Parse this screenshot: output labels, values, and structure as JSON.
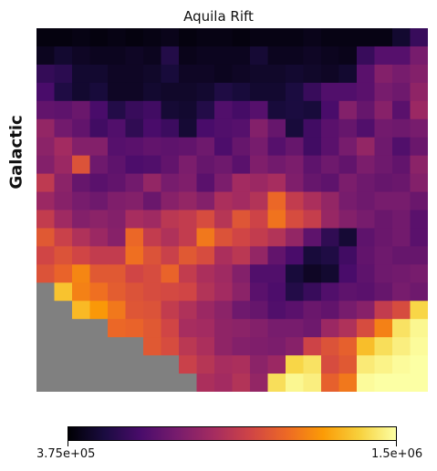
{
  "chart_data": {
    "type": "heatmap",
    "title": "Aquila Rift",
    "ylabel": "Galactic",
    "colormap": "inferno",
    "colorbar": {
      "min": 375000,
      "max": 1500000,
      "min_label": "3.75e+05",
      "max_label": "1.5e+06"
    },
    "masked_color": "#808080",
    "grid_rows": 20,
    "grid_cols": 22,
    "values": [
      [
        0.02,
        0.02,
        0.03,
        0.02,
        0.03,
        0.02,
        0.03,
        0.04,
        0.02,
        0.03,
        0.03,
        0.02,
        0.03,
        0.03,
        0.03,
        0.04,
        0.03,
        0.03,
        0.03,
        0.03,
        0.08,
        0.18
      ],
      [
        0.05,
        0.08,
        0.06,
        0.05,
        0.05,
        0.06,
        0.05,
        0.13,
        0.04,
        0.05,
        0.05,
        0.05,
        0.09,
        0.05,
        0.05,
        0.06,
        0.05,
        0.04,
        0.18,
        0.25,
        0.25,
        0.33
      ],
      [
        0.17,
        0.15,
        0.08,
        0.08,
        0.06,
        0.06,
        0.07,
        0.1,
        0.06,
        0.06,
        0.05,
        0.06,
        0.07,
        0.07,
        0.08,
        0.07,
        0.06,
        0.08,
        0.26,
        0.36,
        0.33,
        0.36
      ],
      [
        0.22,
        0.12,
        0.08,
        0.1,
        0.06,
        0.06,
        0.08,
        0.07,
        0.07,
        0.08,
        0.12,
        0.1,
        0.08,
        0.08,
        0.11,
        0.18,
        0.24,
        0.24,
        0.26,
        0.33,
        0.31,
        0.39
      ],
      [
        0.28,
        0.27,
        0.3,
        0.22,
        0.13,
        0.18,
        0.2,
        0.09,
        0.08,
        0.13,
        0.24,
        0.21,
        0.25,
        0.1,
        0.11,
        0.1,
        0.22,
        0.36,
        0.29,
        0.37,
        0.26,
        0.42
      ],
      [
        0.4,
        0.32,
        0.28,
        0.2,
        0.24,
        0.16,
        0.22,
        0.19,
        0.09,
        0.22,
        0.24,
        0.25,
        0.36,
        0.29,
        0.1,
        0.2,
        0.26,
        0.29,
        0.24,
        0.32,
        0.31,
        0.33
      ],
      [
        0.38,
        0.44,
        0.36,
        0.36,
        0.25,
        0.26,
        0.28,
        0.27,
        0.28,
        0.31,
        0.23,
        0.29,
        0.33,
        0.25,
        0.29,
        0.2,
        0.26,
        0.33,
        0.4,
        0.31,
        0.24,
        0.3
      ],
      [
        0.36,
        0.42,
        0.6,
        0.31,
        0.27,
        0.23,
        0.24,
        0.28,
        0.34,
        0.29,
        0.31,
        0.26,
        0.35,
        0.32,
        0.34,
        0.27,
        0.31,
        0.28,
        0.34,
        0.31,
        0.28,
        0.38
      ],
      [
        0.51,
        0.38,
        0.29,
        0.26,
        0.28,
        0.32,
        0.4,
        0.33,
        0.35,
        0.26,
        0.34,
        0.44,
        0.42,
        0.45,
        0.35,
        0.29,
        0.27,
        0.34,
        0.31,
        0.29,
        0.3,
        0.36
      ],
      [
        0.42,
        0.37,
        0.33,
        0.31,
        0.35,
        0.36,
        0.3,
        0.37,
        0.4,
        0.36,
        0.46,
        0.44,
        0.48,
        0.66,
        0.52,
        0.46,
        0.4,
        0.33,
        0.31,
        0.33,
        0.33,
        0.3
      ],
      [
        0.52,
        0.43,
        0.36,
        0.38,
        0.36,
        0.45,
        0.43,
        0.5,
        0.52,
        0.58,
        0.49,
        0.61,
        0.55,
        0.69,
        0.58,
        0.53,
        0.41,
        0.36,
        0.33,
        0.3,
        0.32,
        0.26
      ],
      [
        0.62,
        0.54,
        0.47,
        0.42,
        0.37,
        0.66,
        0.52,
        0.47,
        0.52,
        0.7,
        0.6,
        0.56,
        0.52,
        0.48,
        0.4,
        0.27,
        0.16,
        0.09,
        0.27,
        0.3,
        0.32,
        0.26
      ],
      [
        0.56,
        0.6,
        0.56,
        0.52,
        0.52,
        0.68,
        0.6,
        0.54,
        0.62,
        0.58,
        0.46,
        0.5,
        0.4,
        0.28,
        0.22,
        0.1,
        0.12,
        0.2,
        0.28,
        0.31,
        0.29,
        0.29
      ],
      [
        0.6,
        0.65,
        0.73,
        0.62,
        0.62,
        0.56,
        0.58,
        0.65,
        0.52,
        0.46,
        0.43,
        0.36,
        0.24,
        0.24,
        0.1,
        0.06,
        0.08,
        0.22,
        0.27,
        0.31,
        0.32,
        0.33
      ],
      [
        -1,
        0.86,
        0.72,
        0.68,
        0.63,
        0.6,
        0.58,
        0.57,
        0.56,
        0.48,
        0.44,
        0.38,
        0.26,
        0.23,
        0.13,
        0.18,
        0.24,
        0.27,
        0.26,
        0.29,
        0.33,
        0.31
      ],
      [
        -1,
        -1,
        0.84,
        0.77,
        0.7,
        0.61,
        0.6,
        0.52,
        0.47,
        0.42,
        0.38,
        0.31,
        0.29,
        0.24,
        0.26,
        0.3,
        0.28,
        0.33,
        0.37,
        0.52,
        0.58,
        0.9
      ],
      [
        -1,
        -1,
        -1,
        -1,
        0.66,
        0.65,
        0.62,
        0.56,
        0.45,
        0.44,
        0.39,
        0.38,
        0.36,
        0.33,
        0.33,
        0.31,
        0.42,
        0.47,
        0.58,
        0.72,
        0.93,
        0.98
      ],
      [
        -1,
        -1,
        -1,
        -1,
        -1,
        -1,
        0.62,
        0.58,
        0.5,
        0.46,
        0.39,
        0.36,
        0.35,
        0.34,
        0.37,
        0.55,
        0.6,
        0.64,
        0.85,
        0.92,
        0.96,
        0.99
      ],
      [
        -1,
        -1,
        -1,
        -1,
        -1,
        -1,
        -1,
        -1,
        0.54,
        0.49,
        0.45,
        0.46,
        0.38,
        0.42,
        0.9,
        0.93,
        0.58,
        0.62,
        0.95,
        0.97,
        0.99,
        1.0
      ],
      [
        -1,
        -1,
        -1,
        -1,
        -1,
        -1,
        -1,
        -1,
        -1,
        0.46,
        0.44,
        0.48,
        0.4,
        0.92,
        0.98,
        0.96,
        0.64,
        0.7,
        0.99,
        1.0,
        1.0,
        1.0
      ]
    ]
  }
}
